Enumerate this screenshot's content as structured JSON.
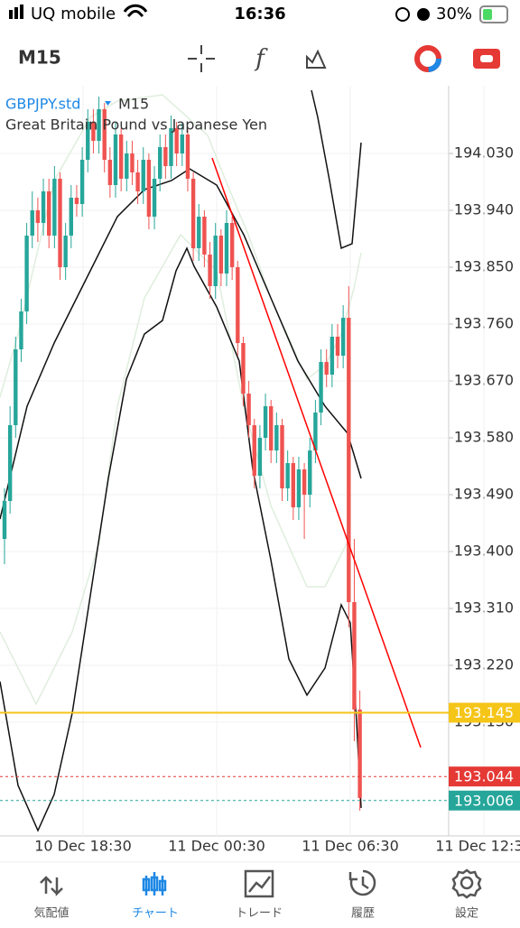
{
  "status_bar": {
    "carrier": "UQ mobile",
    "time": "16:36",
    "battery": "30%"
  },
  "toolbar": {
    "timeframe": "M15"
  },
  "chart_data": {
    "type": "candlestick",
    "symbol": "GBPJPY.std",
    "timeframe": "M15",
    "description": "Great Britain Pound vs Japanese Yen",
    "open": [
      193.42,
      193.48,
      193.6,
      193.72,
      193.78,
      193.9,
      193.94,
      193.92,
      193.97,
      193.9,
      193.99,
      193.85,
      193.9,
      193.96,
      193.95,
      194.02,
      194.08,
      194.05,
      194.1,
      194.02,
      193.98,
      194.06,
      193.99,
      194.03,
      194.0,
      193.97,
      194.02,
      193.93,
      193.99,
      194.04,
      194.01,
      194.07,
      194.03,
      194.06,
      193.99,
      193.88,
      193.93,
      193.87,
      193.82,
      193.9,
      193.84,
      193.92,
      193.85,
      193.73,
      193.65,
      193.6,
      193.52,
      193.58,
      193.63,
      193.56,
      193.6,
      193.5,
      193.54,
      193.47,
      193.53,
      193.49,
      193.56,
      193.62,
      193.7,
      193.68,
      193.74,
      193.71,
      193.77,
      193.32,
      193.15
    ],
    "high": [
      193.5,
      193.63,
      193.74,
      193.8,
      193.92,
      193.97,
      193.96,
      193.99,
      193.99,
      194.01,
      194.0,
      193.92,
      193.98,
      193.98,
      194.04,
      194.1,
      194.1,
      194.12,
      194.11,
      194.04,
      194.08,
      194.07,
      194.05,
      194.05,
      194.02,
      194.04,
      194.03,
      194.01,
      194.06,
      194.06,
      194.09,
      194.08,
      194.08,
      194.07,
      194.0,
      193.95,
      193.94,
      193.89,
      193.92,
      193.91,
      193.94,
      193.93,
      193.86,
      193.74,
      193.67,
      193.61,
      193.6,
      193.65,
      193.64,
      193.62,
      193.61,
      193.56,
      193.55,
      193.55,
      193.54,
      193.58,
      193.64,
      193.72,
      193.72,
      193.76,
      193.76,
      193.79,
      193.82,
      193.42,
      193.18
    ],
    "low": [
      193.38,
      193.46,
      193.58,
      193.7,
      193.76,
      193.88,
      193.89,
      193.9,
      193.88,
      193.88,
      193.83,
      193.83,
      193.88,
      193.93,
      193.93,
      194.0,
      194.03,
      194.03,
      194.0,
      193.96,
      193.96,
      193.97,
      193.97,
      193.98,
      193.95,
      193.95,
      193.91,
      193.91,
      193.97,
      193.99,
      193.99,
      194.01,
      194.01,
      193.97,
      193.86,
      193.86,
      193.85,
      193.8,
      193.8,
      193.82,
      193.82,
      193.83,
      193.71,
      193.63,
      193.58,
      193.5,
      193.5,
      193.56,
      193.54,
      193.54,
      193.48,
      193.48,
      193.45,
      193.45,
      193.42,
      193.47,
      193.54,
      193.6,
      193.66,
      193.66,
      193.69,
      193.69,
      193.28,
      193.1,
      192.99
    ],
    "close": [
      193.48,
      193.6,
      193.72,
      193.78,
      193.9,
      193.94,
      193.92,
      193.97,
      193.9,
      193.99,
      193.85,
      193.9,
      193.96,
      193.95,
      194.02,
      194.08,
      194.05,
      194.1,
      194.02,
      193.98,
      194.06,
      193.99,
      194.03,
      194.0,
      193.97,
      194.02,
      193.93,
      193.99,
      194.04,
      194.01,
      194.07,
      194.03,
      194.06,
      193.99,
      193.88,
      193.93,
      193.87,
      193.82,
      193.9,
      193.84,
      193.92,
      193.85,
      193.73,
      193.65,
      193.6,
      193.52,
      193.58,
      193.63,
      193.56,
      193.6,
      193.5,
      193.54,
      193.47,
      193.53,
      193.49,
      193.56,
      193.62,
      193.7,
      193.68,
      193.74,
      193.71,
      193.77,
      193.32,
      193.15,
      193.01
    ],
    "up_color": "#26a69a",
    "down_color": "#ef5350",
    "ylim": [
      192.95,
      194.13
    ],
    "yticks": [
      {
        "value": 194.03,
        "label": "194.030"
      },
      {
        "value": 193.94,
        "label": "193.940"
      },
      {
        "value": 193.85,
        "label": "193.850"
      },
      {
        "value": 193.76,
        "label": "193.760"
      },
      {
        "value": 193.67,
        "label": "193.670"
      },
      {
        "value": 193.58,
        "label": "193.580"
      },
      {
        "value": 193.49,
        "label": "193.490"
      },
      {
        "value": 193.4,
        "label": "193.400"
      },
      {
        "value": 193.31,
        "label": "193.310"
      },
      {
        "value": 193.22,
        "label": "193.220"
      },
      {
        "value": 193.13,
        "label": "193.130"
      }
    ],
    "xlabels": [
      "10 Dec 18:30",
      "11 Dec 00:30",
      "11 Dec 06:30",
      "11 Dec 12:30"
    ],
    "price_lines": [
      {
        "value": 193.145,
        "color": "#f5c518"
      },
      {
        "value": 193.044,
        "color": "#e53935"
      },
      {
        "value": 193.006,
        "color": "#26a69a"
      }
    ]
  },
  "tab_bar": {
    "items": [
      "気配値",
      "チャート",
      "トレード",
      "履歴",
      "設定"
    ],
    "active": 1
  }
}
